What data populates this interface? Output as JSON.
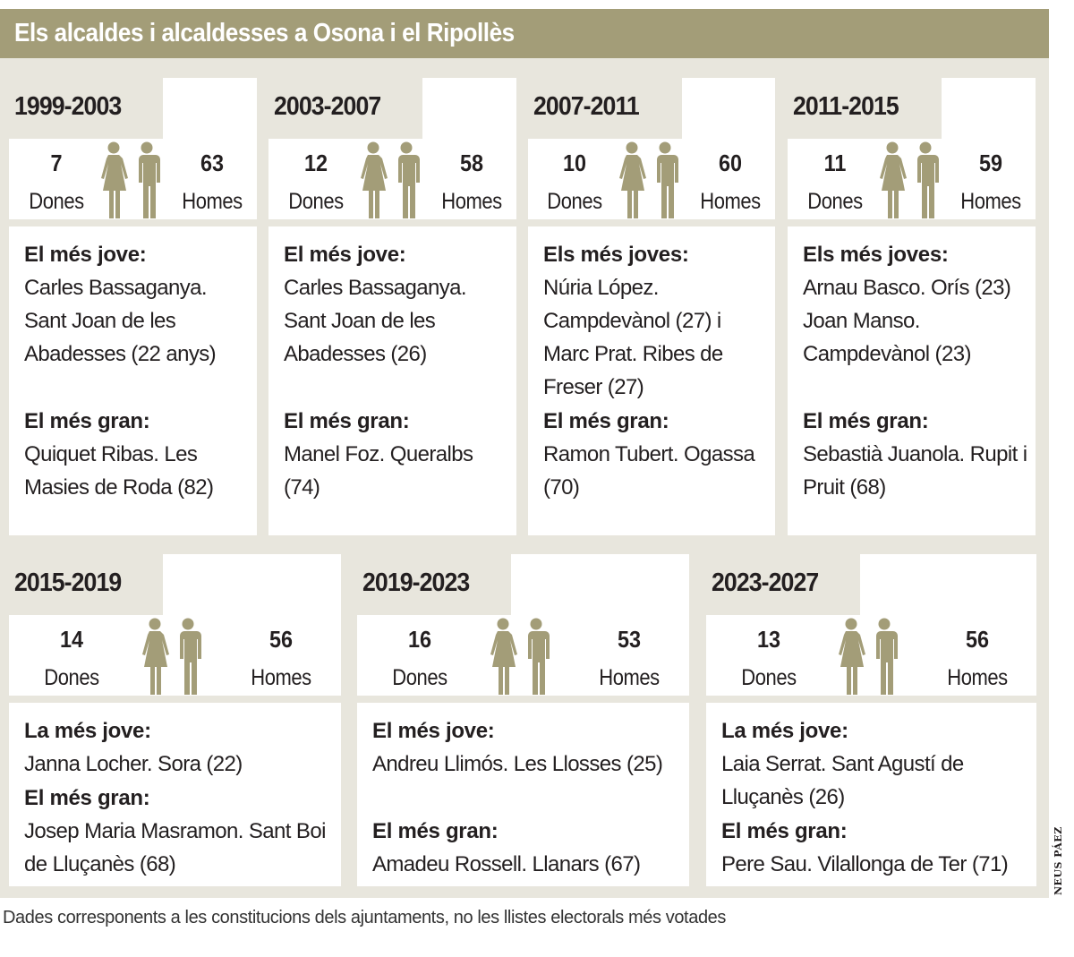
{
  "title": "Els alcaldes i alcaldesses a Osona i el Ripollès",
  "labels": {
    "women": "Dones",
    "men": "Homes"
  },
  "colors": {
    "accent": "#a39d78",
    "background": "#e8e6dd"
  },
  "periods": [
    {
      "years": "1999-2003",
      "women": "7",
      "men": "63",
      "young_title": "El més jove:",
      "young": "Carles Bassaganya. Sant Joan de les Abadesses (22 anys)",
      "old_title": "El més gran:",
      "old": "Quiquet Ribas. Les Masies de Roda (82)"
    },
    {
      "years": "2003-2007",
      "women": "12",
      "men": "58",
      "young_title": "El més jove:",
      "young": "Carles Bassaganya. Sant Joan de les Abadesses (26)",
      "old_title": "El més gran:",
      "old": "Manel Foz. Queralbs (74)"
    },
    {
      "years": "2007-2011",
      "women": "10",
      "men": "60",
      "young_title": "Els més joves:",
      "young": "Núria López. Campdevànol (27) i Marc Prat. Ribes de Freser (27)",
      "old_title": "El més gran:",
      "old": "Ramon Tubert. Ogassa (70)"
    },
    {
      "years": "2011-2015",
      "women": "11",
      "men": "59",
      "young_title": "Els més joves:",
      "young": "Arnau Basco. Orís (23) Joan Manso. Campdevànol (23)",
      "old_title": "El més gran:",
      "old": "Sebastià Juanola. Rupit i Pruit (68)"
    },
    {
      "years": "2015-2019",
      "women": "14",
      "men": "56",
      "young_title": "La més jove:",
      "young": "Janna Locher. Sora (22)",
      "old_title": "El més gran:",
      "old": "Josep Maria Masramon. Sant Boi de Lluçanès (68)"
    },
    {
      "years": "2019-2023",
      "women": "16",
      "men": "53",
      "young_title": "El més jove:",
      "young": "Andreu Llimós. Les Llosses (25)",
      "old_title": "El més gran:",
      "old": "Amadeu Rossell. Llanars (67)"
    },
    {
      "years": "2023-2027",
      "women": "13",
      "men": "56",
      "young_title": "La més jove:",
      "young": "Laia Serrat. Sant Agustí de Lluçanès (26)",
      "old_title": "El més gran:",
      "old": "Pere Sau. Vilallonga de Ter (71)"
    }
  ],
  "footnote": "Dades corresponents a les constitucions dels ajuntaments, no les llistes electorals més votades",
  "credit": "NEUS PÁEZ"
}
